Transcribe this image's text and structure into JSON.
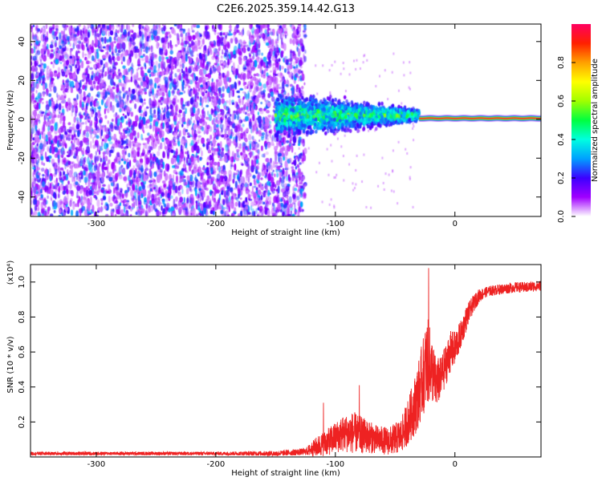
{
  "page": {
    "title": "C2E6.2025.359.14.42.G13"
  },
  "chart_data": [
    {
      "type": "heatmap",
      "id": "spectrogram",
      "title": "C2E6.2025.359.14.42.G13",
      "xlabel": "Height of straight line (km)",
      "ylabel": "Frequency (Hz)",
      "xlim": [
        -355,
        72
      ],
      "ylim": [
        -50,
        49
      ],
      "x_ticks": [
        -300,
        -200,
        -100,
        0
      ],
      "y_ticks": [
        -40,
        -20,
        0,
        20,
        40
      ],
      "grid": false,
      "colorbar": {
        "label": "Normalized spectral amplitude",
        "range": [
          0,
          1
        ],
        "ticks": [
          0.0,
          0.2,
          0.4,
          0.6,
          0.8
        ],
        "colors": [
          "#ffffff",
          "#a000ff",
          "#3c00ff",
          "#00a0ff",
          "#00ffe0",
          "#00ff40",
          "#a0ff00",
          "#ffff00",
          "#ffa000",
          "#ff2000",
          "#ff0060"
        ]
      },
      "regions": [
        {
          "name": "noise",
          "x_range": [
            -355,
            -125
          ],
          "y_range": [
            -50,
            49
          ],
          "amplitude": [
            0.0,
            0.3
          ]
        },
        {
          "name": "signal-onset",
          "x_range": [
            -150,
            -30
          ],
          "y_center": 2,
          "y_halfwidth": [
            15,
            4
          ],
          "amplitude": [
            0.2,
            0.5
          ]
        },
        {
          "name": "carrier",
          "x_range": [
            -30,
            72
          ],
          "y_center": 0.5,
          "y_halfwidth": 2,
          "amplitude": [
            0.9,
            1.0
          ]
        }
      ]
    },
    {
      "type": "line",
      "id": "snr",
      "title": "",
      "xlabel": "Height of straight line (km)",
      "ylabel": "SNR (10 * v/v)",
      "y_multiplier": "(x10⁴)",
      "xlim": [
        -355,
        72
      ],
      "ylim": [
        0,
        1.1
      ],
      "x_ticks": [
        -300,
        -200,
        -100,
        0
      ],
      "y_ticks": [
        0.2,
        0.4,
        0.6,
        0.8,
        1.0
      ],
      "grid": false,
      "series": [
        {
          "color": "#ee2222",
          "x": [
            -355,
            -300,
            -250,
            -200,
            -150,
            -125,
            -115,
            -105,
            -95,
            -85,
            -75,
            -65,
            -55,
            -45,
            -38,
            -32,
            -27,
            -23,
            -20,
            -16,
            -12,
            -8,
            -4,
            0,
            5,
            10,
            15,
            20,
            25,
            30,
            40,
            50,
            60,
            72
          ],
          "y": [
            0.02,
            0.02,
            0.02,
            0.02,
            0.02,
            0.03,
            0.06,
            0.09,
            0.13,
            0.14,
            0.12,
            0.1,
            0.09,
            0.12,
            0.22,
            0.32,
            0.45,
            0.55,
            0.52,
            0.42,
            0.45,
            0.52,
            0.6,
            0.62,
            0.7,
            0.8,
            0.87,
            0.92,
            0.94,
            0.95,
            0.96,
            0.97,
            0.97,
            0.98
          ],
          "noise": [
            0.01,
            0.01,
            0.01,
            0.01,
            0.015,
            0.02,
            0.06,
            0.08,
            0.1,
            0.12,
            0.1,
            0.08,
            0.08,
            0.1,
            0.14,
            0.18,
            0.22,
            0.25,
            0.2,
            0.15,
            0.12,
            0.12,
            0.12,
            0.1,
            0.08,
            0.07,
            0.05,
            0.04,
            0.03,
            0.03,
            0.03,
            0.03,
            0.03,
            0.03
          ],
          "peaks": [
            {
              "x": -22,
              "y": 1.08
            },
            {
              "x": -110,
              "y": 0.31
            },
            {
              "x": -80,
              "y": 0.41
            }
          ]
        }
      ]
    }
  ]
}
